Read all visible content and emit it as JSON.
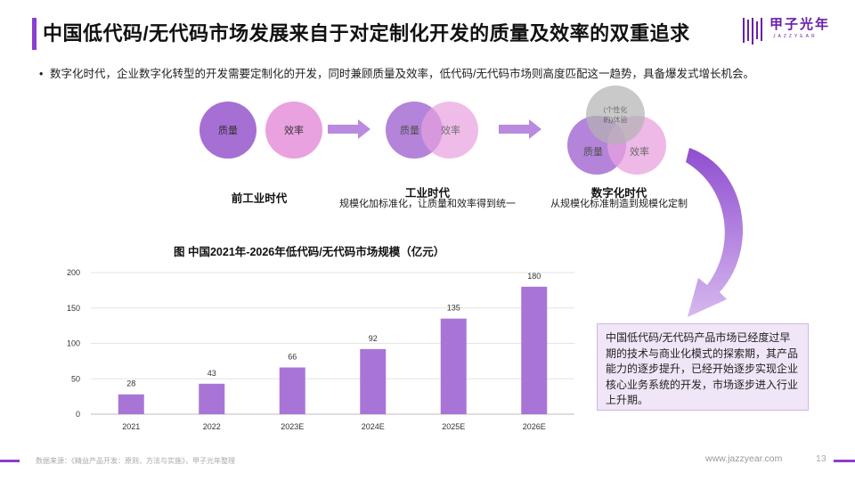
{
  "title": "中国低代码/无代码市场发展来自于对定制化开发的质量及效率的双重追求",
  "logo": {
    "name": "甲子光年",
    "sub": "JAZZYEAR"
  },
  "bullet": "数字化时代，企业数字化转型的开发需要定制化的开发，同时兼顾质量及效率，低代码/无代码市场则高度匹配这一趋势，具备爆发式增长机会。",
  "eras": [
    {
      "quality": "质量",
      "efficiency": "效率",
      "title": "前工业时代",
      "desc": ""
    },
    {
      "quality": "质量",
      "efficiency": "效率",
      "title": "工业时代",
      "desc": "规模化加标准化，让质量和效率得到统一"
    },
    {
      "quality": "质量",
      "efficiency": "效率",
      "extra": "(个性化的)体验",
      "title": "数字化时代",
      "desc": "从规模化标准制造到规模化定制"
    }
  ],
  "callout": "中国低代码/无代码产品市场已经度过早期的技术与商业化模式的探索期，其产品能力的逐步提升，已经开始逐步实现企业核心业务系统的开发，市场逐步进入行业上升期。",
  "footer": {
    "source": "数据来源：《精益产品开发：原则、方法与实施》，甲子光年整理",
    "site": "www.jazzyear.com",
    "page": "13"
  },
  "colors": {
    "accent": "#8b3fd0",
    "bar": "#a875d6",
    "quality": "#a66fd4",
    "efficiency": "#e9a1e0"
  },
  "chart_data": {
    "type": "bar",
    "title": "图 中国2021年-2026年低代码/无代码市场规模（亿元）",
    "categories": [
      "2021",
      "2022",
      "2023E",
      "2024E",
      "2025E",
      "2026E"
    ],
    "values": [
      28,
      43,
      66,
      92,
      135,
      180
    ],
    "yticks": [
      0,
      50,
      100,
      150,
      200
    ],
    "ylim": [
      0,
      200
    ],
    "xlabel": "",
    "ylabel": ""
  }
}
